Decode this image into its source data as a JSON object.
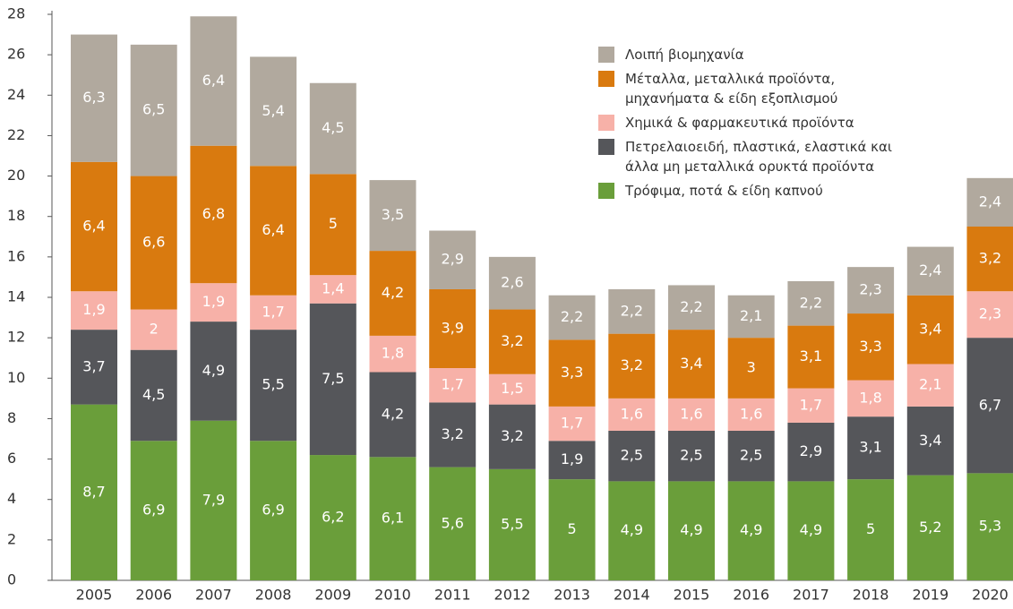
{
  "chart_data": {
    "type": "stacked_bar",
    "categories": [
      "2005",
      "2006",
      "2007",
      "2008",
      "2009",
      "2010",
      "2011",
      "2012",
      "2013",
      "2014",
      "2015",
      "2016",
      "2017",
      "2018",
      "2019",
      "2020"
    ],
    "ylim": [
      0,
      28
    ],
    "yticks": [
      0,
      2,
      4,
      6,
      8,
      10,
      12,
      14,
      16,
      18,
      20,
      22,
      24,
      26,
      28
    ],
    "legend": "top-right",
    "series": [
      {
        "name": "Τρόφιμα, ποτά & είδη καπνού",
        "color": "#6a9e3a",
        "values": [
          8.7,
          6.9,
          7.9,
          6.9,
          6.2,
          6.1,
          5.6,
          5.5,
          5,
          4.9,
          4.9,
          4.9,
          4.9,
          5,
          5.2,
          5.3
        ],
        "value_labels": [
          "8,7",
          "6,9",
          "7,9",
          "6,9",
          "6,2",
          "6,1",
          "5,6",
          "5,5",
          "5",
          "4,9",
          "4,9",
          "4,9",
          "4,9",
          "5",
          "5,2",
          "5,3"
        ]
      },
      {
        "name": "Πετρελαιοειδή, πλαστικά, ελαστικά και\nάλλα μη μεταλλικά ορυκτά προϊόντα",
        "color": "#55565a",
        "values": [
          3.7,
          4.5,
          4.9,
          5.5,
          7.5,
          4.2,
          3.2,
          3.2,
          1.9,
          2.5,
          2.5,
          2.5,
          2.9,
          3.1,
          3.4,
          6.7
        ],
        "value_labels": [
          "3,7",
          "4,5",
          "4,9",
          "5,5",
          "7,5",
          "4,2",
          "3,2",
          "3,2",
          "1,9",
          "2,5",
          "2,5",
          "2,5",
          "2,9",
          "3,1",
          "3,4",
          "6,7"
        ]
      },
      {
        "name": "Χημικά & φαρμακευτικά προϊόντα",
        "color": "#f7b1a8",
        "values": [
          1.9,
          2,
          1.9,
          1.7,
          1.4,
          1.8,
          1.7,
          1.5,
          1.7,
          1.6,
          1.6,
          1.6,
          1.7,
          1.8,
          2.1,
          2.3
        ],
        "value_labels": [
          "1,9",
          "2",
          "1,9",
          "1,7",
          "1,4",
          "1,8",
          "1,7",
          "1,5",
          "1,7",
          "1,6",
          "1,6",
          "1,6",
          "1,7",
          "1,8",
          "2,1",
          "2,3"
        ]
      },
      {
        "name": "Μέταλλα, μεταλλικά προϊόντα,\nμηχανήματα & είδη εξοπλισμού",
        "color": "#d97a0f",
        "values": [
          6.4,
          6.6,
          6.8,
          6.4,
          5,
          4.2,
          3.9,
          3.2,
          3.3,
          3.2,
          3.4,
          3,
          3.1,
          3.3,
          3.4,
          3.2
        ],
        "value_labels": [
          "6,4",
          "6,6",
          "6,8",
          "6,4",
          "5",
          "4,2",
          "3,9",
          "3,2",
          "3,3",
          "3,2",
          "3,4",
          "3",
          "3,1",
          "3,3",
          "3,4",
          "3,2"
        ]
      },
      {
        "name": "Λοιπή βιομηχανία",
        "color": "#b1a99e",
        "values": [
          6.3,
          6.5,
          6.4,
          5.4,
          4.5,
          3.5,
          2.9,
          2.6,
          2.2,
          2.2,
          2.2,
          2.1,
          2.2,
          2.3,
          2.4,
          2.4
        ],
        "value_labels": [
          "6,3",
          "6,5",
          "6,4",
          "5,4",
          "4,5",
          "3,5",
          "2,9",
          "2,6",
          "2,2",
          "2,2",
          "2,2",
          "2,1",
          "2,2",
          "2,3",
          "2,4",
          "2,4"
        ]
      }
    ]
  }
}
